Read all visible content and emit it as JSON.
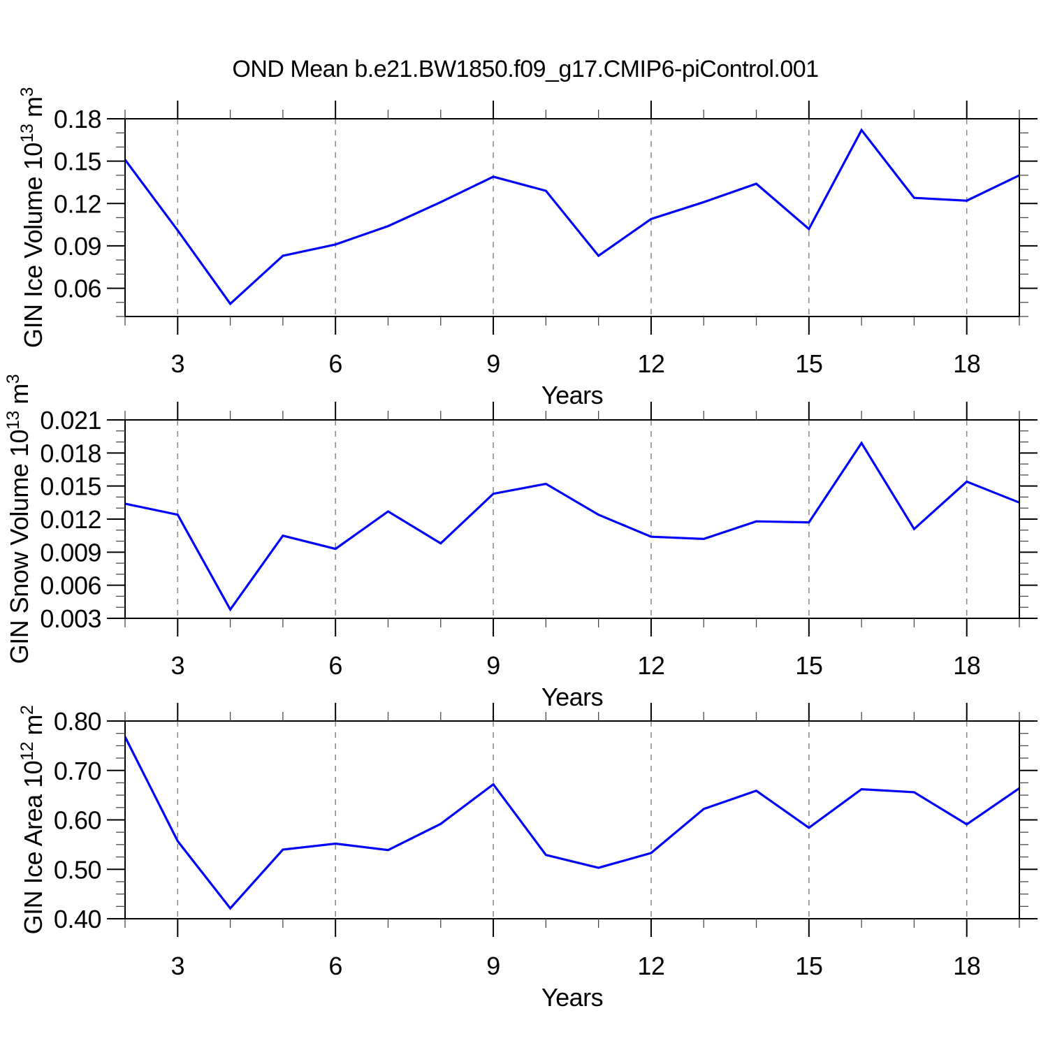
{
  "title": "OND Mean b.e21.BW1850.f09_g17.CMIP6-piControl.001",
  "colors": {
    "line": "#0000FF",
    "frame": "#000000",
    "grid": "#878787",
    "major_tick": "#000000",
    "minor_tick": "#4A4A4A",
    "text": "#000000",
    "background": "#FFFFFF"
  },
  "chart_data": [
    {
      "type": "line",
      "title": "OND Mean b.e21.BW1850.f09_g17.CMIP6-piControl.001",
      "ylabel": "GIN Ice Volume 10^13 m^3",
      "ylabel_segments": [
        {
          "t": "GIN Ice Volume 10",
          "sup": false
        },
        {
          "t": "13",
          "sup": true
        },
        {
          "t": " m",
          "sup": false
        },
        {
          "t": "3",
          "sup": true
        }
      ],
      "xlabel": "Years",
      "x": [
        2,
        3,
        4,
        5,
        6,
        7,
        8,
        9,
        10,
        11,
        12,
        13,
        14,
        15,
        16,
        17,
        18,
        19
      ],
      "values": [
        0.151,
        0.101,
        0.049,
        0.083,
        0.091,
        0.104,
        0.121,
        0.139,
        0.129,
        0.083,
        0.109,
        0.121,
        0.134,
        0.102,
        0.172,
        0.124,
        0.122,
        0.14
      ],
      "xlim": [
        2,
        19
      ],
      "ylim": [
        0.04,
        0.18
      ],
      "xticks": [
        3,
        6,
        9,
        12,
        15,
        18
      ],
      "xtick_labels": [
        "3",
        "6",
        "9",
        "12",
        "15",
        "18"
      ],
      "xminor_step": 1,
      "yticks": [
        0.06,
        0.09,
        0.12,
        0.15,
        0.18
      ],
      "ytick_labels": [
        "0.06",
        "0.09",
        "0.12",
        "0.15",
        "0.18"
      ],
      "yminor_step": 0.01,
      "grid": "vertical dashed gridlines at major x ticks",
      "legend": "none"
    },
    {
      "type": "line",
      "title": "",
      "ylabel": "GIN Snow Volume 10^13 m^3",
      "ylabel_segments": [
        {
          "t": "GIN Snow Volume 10",
          "sup": false
        },
        {
          "t": "13",
          "sup": true
        },
        {
          "t": " m",
          "sup": false
        },
        {
          "t": "3",
          "sup": true
        }
      ],
      "xlabel": "Years",
      "x": [
        2,
        3,
        4,
        5,
        6,
        7,
        8,
        9,
        10,
        11,
        12,
        13,
        14,
        15,
        16,
        17,
        18,
        19
      ],
      "values": [
        0.0134,
        0.0124,
        0.0038,
        0.0105,
        0.0093,
        0.0127,
        0.0098,
        0.0143,
        0.0152,
        0.0124,
        0.0104,
        0.0102,
        0.0118,
        0.0117,
        0.0189,
        0.0111,
        0.0154,
        0.0135
      ],
      "xlim": [
        2,
        19
      ],
      "ylim": [
        0.003,
        0.021
      ],
      "xticks": [
        3,
        6,
        9,
        12,
        15,
        18
      ],
      "xtick_labels": [
        "3",
        "6",
        "9",
        "12",
        "15",
        "18"
      ],
      "xminor_step": 1,
      "yticks": [
        0.003,
        0.006,
        0.009,
        0.012,
        0.015,
        0.018,
        0.021
      ],
      "ytick_labels": [
        "0.003",
        "0.006",
        "0.009",
        "0.012",
        "0.015",
        "0.018",
        "0.021"
      ],
      "yminor_step": 0.001,
      "grid": "vertical dashed gridlines at major x ticks",
      "legend": "none"
    },
    {
      "type": "line",
      "title": "",
      "ylabel": "GIN Ice Area 10^12 m^2",
      "ylabel_segments": [
        {
          "t": "GIN Ice Area 10",
          "sup": false
        },
        {
          "t": "12",
          "sup": true
        },
        {
          "t": " m",
          "sup": false
        },
        {
          "t": "2",
          "sup": true
        }
      ],
      "xlabel": "Years",
      "x": [
        2,
        3,
        4,
        5,
        6,
        7,
        8,
        9,
        10,
        11,
        12,
        13,
        14,
        15,
        16,
        17,
        18,
        19
      ],
      "values": [
        0.768,
        0.557,
        0.421,
        0.54,
        0.552,
        0.539,
        0.592,
        0.672,
        0.529,
        0.503,
        0.533,
        0.622,
        0.659,
        0.584,
        0.662,
        0.656,
        0.591,
        0.664
      ],
      "xlim": [
        2,
        19
      ],
      "ylim": [
        0.4,
        0.8
      ],
      "xticks": [
        3,
        6,
        9,
        12,
        15,
        18
      ],
      "xtick_labels": [
        "3",
        "6",
        "9",
        "12",
        "15",
        "18"
      ],
      "xminor_step": 1,
      "yticks": [
        0.4,
        0.5,
        0.6,
        0.7,
        0.8
      ],
      "ytick_labels": [
        "0.40",
        "0.50",
        "0.60",
        "0.70",
        "0.80"
      ],
      "yminor_step": 0.025,
      "grid": "vertical dashed gridlines at major x ticks",
      "legend": "none"
    }
  ]
}
